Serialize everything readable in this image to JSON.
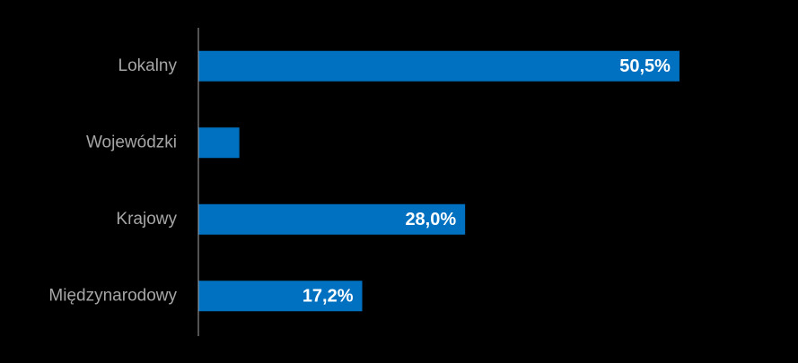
{
  "chart_data": {
    "type": "bar",
    "orientation": "horizontal",
    "categories": [
      "Lokalny",
      "Wojewódzki",
      "Krajowy",
      "Międzynarodowy"
    ],
    "values": [
      50.5,
      4.3,
      28.0,
      17.2
    ],
    "value_labels": [
      "50,5%",
      null,
      "28,0%",
      "17,2%"
    ],
    "color": "#0070c0",
    "xlim": [
      0,
      62
    ]
  }
}
